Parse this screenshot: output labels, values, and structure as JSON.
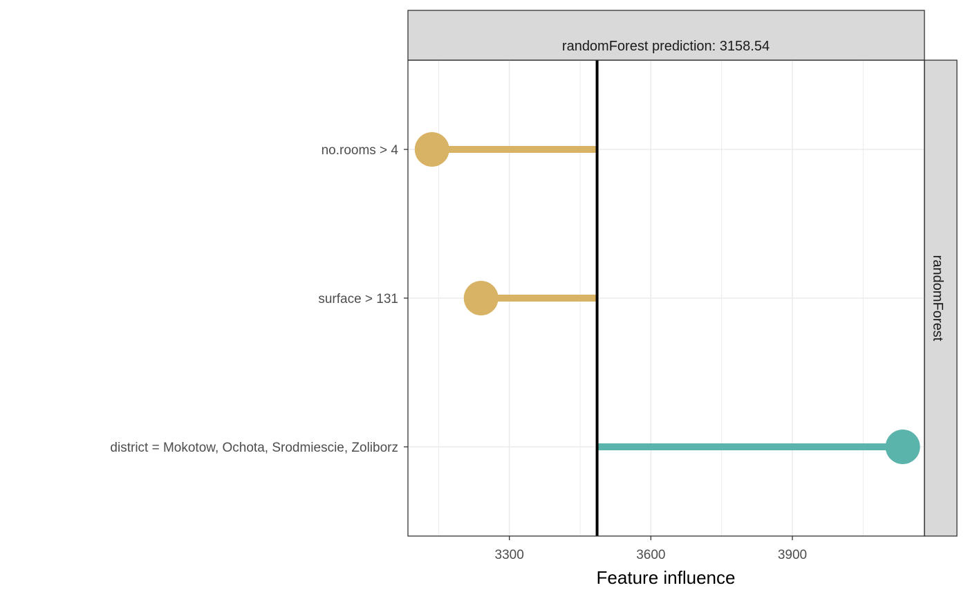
{
  "chart_data": {
    "type": "bar",
    "style": "lollipop",
    "panel_title": "randomForest prediction:  3158.54",
    "facet_label": "randomForest",
    "xlabel": "Feature influence",
    "ylabel": "",
    "intercept": 3486,
    "xlim": [
      3085,
      4180
    ],
    "x_ticks": [
      3300,
      3600,
      3900
    ],
    "x_tick_labels": [
      "3300",
      "3600",
      "3900"
    ],
    "grid": true,
    "categories": [
      "no.rooms > 4",
      "surface > 131",
      "district = Mokotow, Ochota, Srodmiescie, Zoliborz"
    ],
    "values": [
      3136,
      3240,
      4134
    ],
    "colors": {
      "negative": "#d8b365",
      "positive": "#5ab4ac",
      "intercept_line": "#000000",
      "strip_fill": "#d9d9d9",
      "grid": "#ebebeb"
    }
  }
}
